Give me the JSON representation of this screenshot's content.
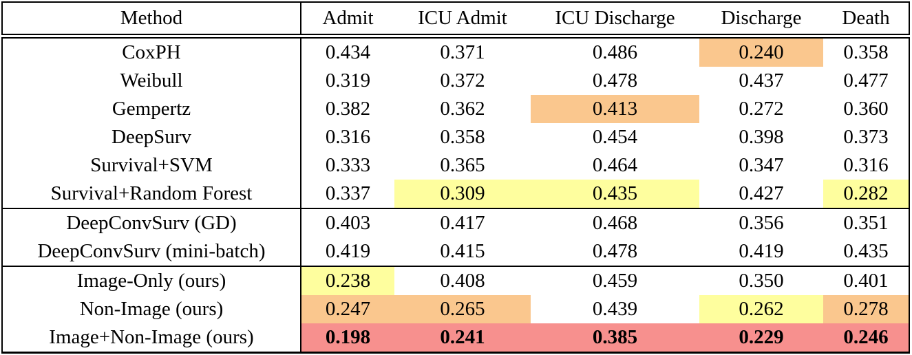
{
  "table": {
    "columns": [
      {
        "label": "Method"
      },
      {
        "label": "Admit"
      },
      {
        "label": "ICU Admit"
      },
      {
        "label": "ICU Discharge"
      },
      {
        "label": "Discharge"
      },
      {
        "label": "Death"
      }
    ],
    "highlight_colors": {
      "yellow": "#FEFE9E",
      "orange": "#FAC78E",
      "red": "#F7908E"
    },
    "groups": [
      {
        "rows": [
          {
            "method": "CoxPH",
            "values": [
              "0.434",
              "0.371",
              "0.486",
              "0.240",
              "0.358"
            ],
            "highlights": [
              null,
              null,
              null,
              "orange",
              null
            ],
            "bold": false
          },
          {
            "method": "Weibull",
            "values": [
              "0.319",
              "0.372",
              "0.478",
              "0.437",
              "0.477"
            ],
            "highlights": [
              null,
              null,
              null,
              null,
              null
            ],
            "bold": false
          },
          {
            "method": "Gempertz",
            "values": [
              "0.382",
              "0.362",
              "0.413",
              "0.272",
              "0.360"
            ],
            "highlights": [
              null,
              null,
              "orange",
              null,
              null
            ],
            "bold": false
          },
          {
            "method": "DeepSurv",
            "values": [
              "0.316",
              "0.358",
              "0.454",
              "0.398",
              "0.373"
            ],
            "highlights": [
              null,
              null,
              null,
              null,
              null
            ],
            "bold": false
          },
          {
            "method": "Survival+SVM",
            "values": [
              "0.333",
              "0.365",
              "0.464",
              "0.347",
              "0.316"
            ],
            "highlights": [
              null,
              null,
              null,
              null,
              null
            ],
            "bold": false
          },
          {
            "method": "Survival+Random Forest",
            "values": [
              "0.337",
              "0.309",
              "0.435",
              "0.427",
              "0.282"
            ],
            "highlights": [
              null,
              "yellow",
              "yellow",
              null,
              "yellow"
            ],
            "bold": false
          }
        ]
      },
      {
        "rows": [
          {
            "method": "DeepConvSurv (GD)",
            "values": [
              "0.403",
              "0.417",
              "0.468",
              "0.356",
              "0.351"
            ],
            "highlights": [
              null,
              null,
              null,
              null,
              null
            ],
            "bold": false
          },
          {
            "method": "DeepConvSurv (mini-batch)",
            "values": [
              "0.419",
              "0.415",
              "0.478",
              "0.419",
              "0.435"
            ],
            "highlights": [
              null,
              null,
              null,
              null,
              null
            ],
            "bold": false
          }
        ]
      },
      {
        "rows": [
          {
            "method": "Image-Only (ours)",
            "values": [
              "0.238",
              "0.408",
              "0.459",
              "0.350",
              "0.401"
            ],
            "highlights": [
              "yellow",
              null,
              null,
              null,
              null
            ],
            "bold": false
          },
          {
            "method": "Non-Image (ours)",
            "values": [
              "0.247",
              "0.265",
              "0.439",
              "0.262",
              "0.278"
            ],
            "highlights": [
              "orange",
              "orange",
              null,
              "yellow",
              "orange"
            ],
            "bold": false
          },
          {
            "method": "Image+Non-Image (ours)",
            "values": [
              "0.198",
              "0.241",
              "0.385",
              "0.229",
              "0.246"
            ],
            "highlights": [
              "red",
              "red",
              "red",
              "red",
              "red"
            ],
            "bold": true
          }
        ]
      }
    ]
  }
}
